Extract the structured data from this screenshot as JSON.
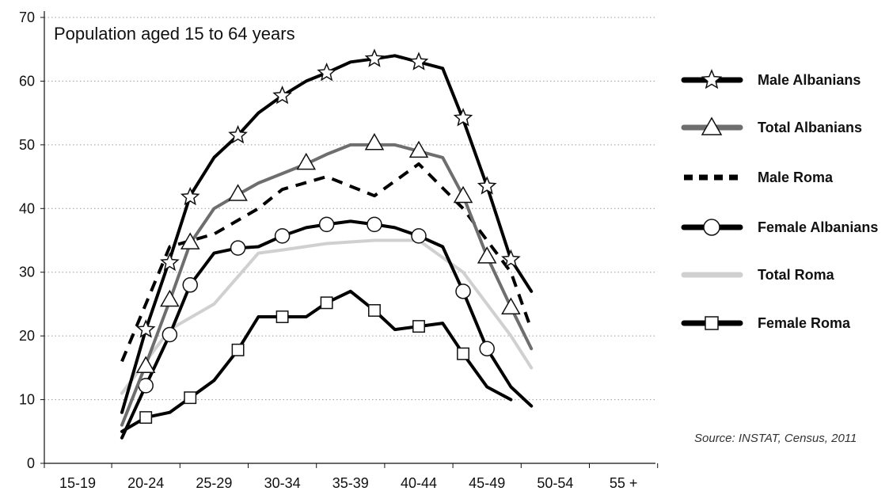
{
  "chart_data": {
    "type": "line",
    "title": "Population aged 15 to 64 years",
    "source": "Source: INSTAT, Census, 2011",
    "categories": [
      "15-19",
      "20-24",
      "25-29",
      "30-34",
      "35-39",
      "40-44",
      "45-49",
      "50-54",
      "55 +"
    ],
    "ylim": [
      0,
      70
    ],
    "yticks": [
      0,
      10,
      20,
      30,
      40,
      50,
      60,
      70
    ],
    "grid": "horizontal dotted",
    "legend_position": "right",
    "series": [
      {
        "name": "Male Albanians",
        "color": "#000000",
        "dash": "solid",
        "marker": "star",
        "x": [
          0.65,
          1.0,
          1.35,
          1.65,
          2.0,
          2.35,
          2.65,
          3.0,
          3.35,
          3.65,
          4.0,
          4.35,
          4.65,
          5.0,
          5.35,
          5.65,
          6.0,
          6.35,
          6.65,
          7.0,
          7.35,
          7.65,
          8.0,
          8.35
        ],
        "y": [
          8,
          21,
          32,
          42,
          48,
          51.5,
          55,
          57.7,
          60,
          61.3,
          63,
          63.5,
          64,
          63,
          62,
          54,
          43.5,
          32,
          27,
          null,
          null,
          null,
          null,
          null
        ]
      },
      {
        "name": "Total Albanians",
        "color": "#6e6e6e",
        "dash": "solid",
        "marker": "triangle",
        "x": [
          0.65,
          1.0,
          1.35,
          1.65,
          2.0,
          2.35,
          2.65,
          3.0,
          3.35,
          3.65,
          4.0,
          4.35,
          4.65,
          5.0,
          5.35,
          5.65,
          6.0,
          6.35,
          6.65
        ],
        "y": [
          6,
          15.5,
          25.5,
          34.5,
          40,
          42.2,
          44,
          45.5,
          47,
          48.5,
          50,
          50,
          50,
          49,
          48,
          42,
          32.5,
          24.5,
          18
        ]
      },
      {
        "name": "Male Roma",
        "color": "#000000",
        "dash": "dashed",
        "marker": "none",
        "x": [
          0.65,
          1.35,
          2.0,
          2.65,
          3.0,
          3.65,
          4.35,
          5.0,
          5.65,
          6.35,
          6.65
        ],
        "y": [
          16,
          34,
          36,
          40,
          43,
          45,
          42,
          47,
          40,
          30,
          21
        ]
      },
      {
        "name": "Female Albanians",
        "color": "#000000",
        "dash": "solid",
        "marker": "circle",
        "x": [
          0.65,
          1.0,
          1.35,
          1.65,
          2.0,
          2.35,
          2.65,
          3.0,
          3.35,
          3.65,
          4.0,
          4.35,
          4.65,
          5.0,
          5.35,
          5.65,
          6.0,
          6.35,
          6.65
        ],
        "y": [
          4,
          12.2,
          20.2,
          28,
          33,
          33.8,
          34,
          35.7,
          37,
          37.5,
          38,
          37.5,
          37,
          35.7,
          34,
          27,
          18,
          12,
          9
        ]
      },
      {
        "name": "Total Roma",
        "color": "#d0d0d0",
        "dash": "solid",
        "marker": "none",
        "x": [
          0.65,
          1.35,
          2.0,
          2.65,
          3.0,
          3.65,
          4.35,
          5.0,
          5.65,
          6.35,
          6.65
        ],
        "y": [
          11,
          21,
          25,
          33,
          33.5,
          34.5,
          35,
          35,
          30,
          20,
          15
        ]
      },
      {
        "name": "Female Roma",
        "color": "#000000",
        "dash": "solid",
        "marker": "square",
        "x": [
          0.65,
          1.0,
          1.35,
          1.65,
          2.0,
          2.35,
          2.65,
          3.0,
          3.35,
          3.65,
          4.0,
          4.35,
          4.65,
          5.0,
          5.35,
          5.65,
          6.0,
          6.35,
          6.65
        ],
        "y": [
          5,
          7.2,
          8,
          10.3,
          13,
          17.8,
          23,
          23,
          23,
          25.2,
          27,
          24,
          21,
          21.5,
          22,
          17.2,
          12,
          10,
          null
        ]
      }
    ],
    "markers": {
      "Male Albanians": [
        [
          1.0,
          21
        ],
        [
          1.35,
          31.5
        ],
        [
          1.65,
          41.8
        ],
        [
          2.35,
          51.5
        ],
        [
          3.0,
          57.7
        ],
        [
          3.65,
          61.3
        ],
        [
          4.35,
          63.5
        ],
        [
          5.0,
          63
        ],
        [
          5.65,
          54.2
        ],
        [
          6.0,
          43.5
        ],
        [
          6.35,
          32
        ]
      ],
      "Total Albanians": [
        [
          1.0,
          15.3
        ],
        [
          1.35,
          25.7
        ],
        [
          1.65,
          34.7
        ],
        [
          2.35,
          42.3
        ],
        [
          3.35,
          47.2
        ],
        [
          4.35,
          50.3
        ],
        [
          5.0,
          49.1
        ],
        [
          5.65,
          42
        ],
        [
          6.0,
          32.5
        ],
        [
          6.35,
          24.5
        ]
      ],
      "Female Albanians": [
        [
          1.0,
          12.2
        ],
        [
          1.35,
          20.2
        ],
        [
          1.65,
          28
        ],
        [
          2.35,
          33.8
        ],
        [
          3.0,
          35.7
        ],
        [
          3.65,
          37.5
        ],
        [
          4.35,
          37.5
        ],
        [
          5.0,
          35.7
        ],
        [
          5.65,
          27
        ],
        [
          6.0,
          18
        ]
      ],
      "Female Roma": [
        [
          1.0,
          7.2
        ],
        [
          1.65,
          10.3
        ],
        [
          2.35,
          17.8
        ],
        [
          3.0,
          23
        ],
        [
          3.65,
          25.2
        ],
        [
          4.35,
          24
        ],
        [
          5.0,
          21.5
        ],
        [
          5.65,
          17.2
        ]
      ]
    }
  }
}
